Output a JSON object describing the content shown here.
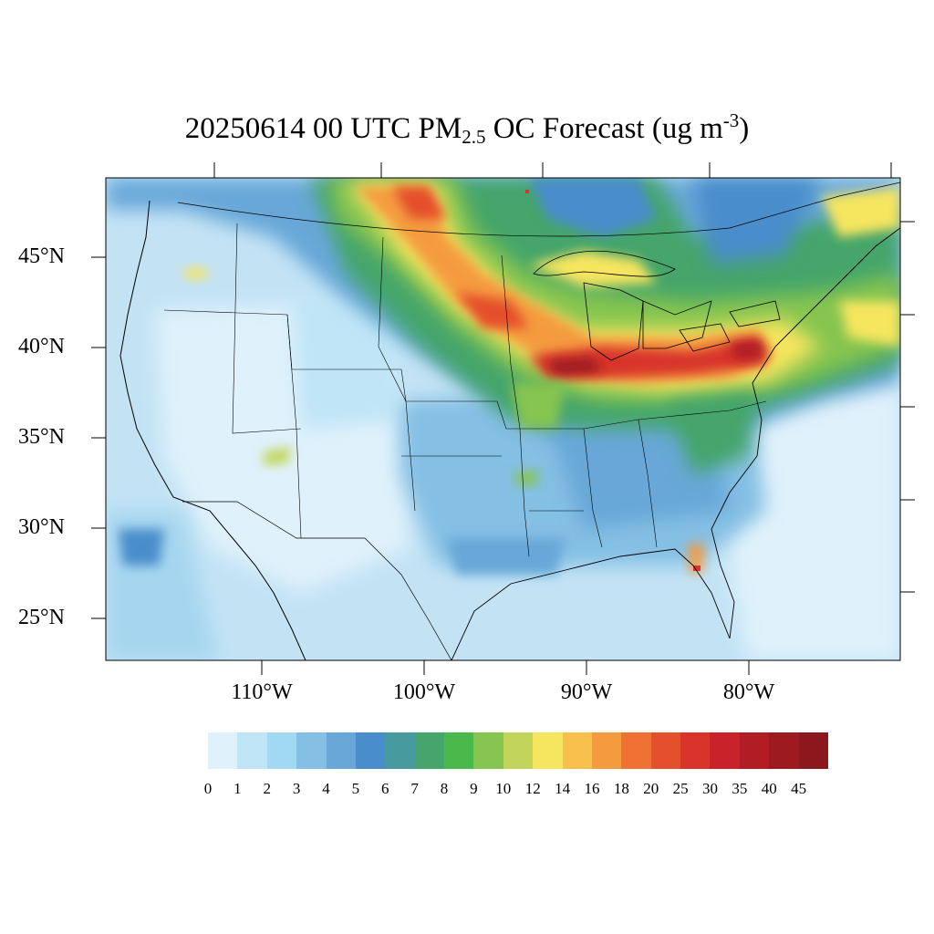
{
  "title": {
    "prefix": "20250614 00 UTC PM",
    "subscript": "2.5",
    "middle": " OC Forecast (ug m",
    "superscript": "-3",
    "suffix": ")"
  },
  "map": {
    "region": "Contiguous United States",
    "projection": "Lambert conformal",
    "variable": "PM2.5 organic carbon",
    "lat_labels": [
      "45°N",
      "40°N",
      "35°N",
      "30°N",
      "25°N"
    ],
    "lon_labels": [
      "110°W",
      "100°W",
      "90°W",
      "80°W"
    ]
  },
  "colorbar": {
    "ticks": [
      "0",
      "1",
      "2",
      "3",
      "4",
      "5",
      "6",
      "7",
      "8",
      "9",
      "10",
      "12",
      "14",
      "16",
      "18",
      "20",
      "25",
      "30",
      "35",
      "40",
      "45"
    ],
    "colors": [
      "#dff1fb",
      "#bfe5f7",
      "#a1d8f3",
      "#84bfe4",
      "#68a7d8",
      "#4a8dcb",
      "#479a9e",
      "#45a56a",
      "#4ab84a",
      "#86c550",
      "#c2d55a",
      "#f6e55e",
      "#f7c04b",
      "#f49b40",
      "#ef7234",
      "#e4502c",
      "#d83429",
      "#c8222a",
      "#b21d25",
      "#9d1a20",
      "#8a181c"
    ]
  }
}
